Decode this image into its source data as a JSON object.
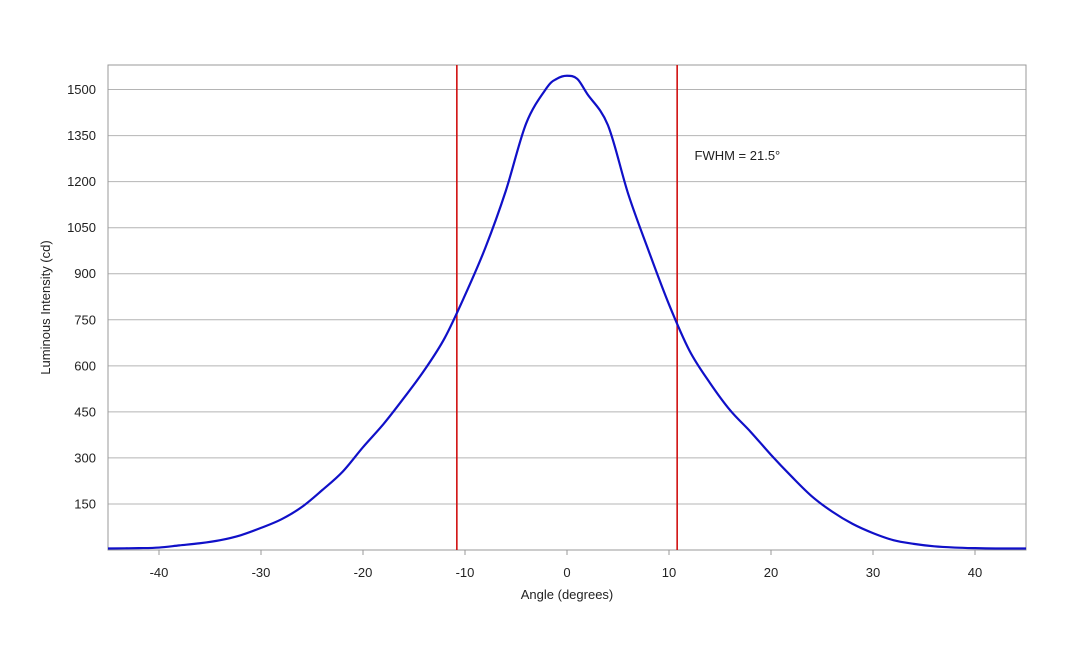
{
  "chart_data": {
    "type": "line",
    "title": "",
    "xlabel": "Angle (degrees)",
    "ylabel": "Luminous Intensity (cd)",
    "xlim": [
      -45,
      45
    ],
    "ylim": [
      0,
      1580
    ],
    "x_ticks": [
      -40,
      -30,
      -20,
      -10,
      0,
      10,
      20,
      30,
      40
    ],
    "x_tick_labels": [
      "-40",
      "-30",
      "-20",
      "-10",
      "0",
      "10",
      "20",
      "30",
      "40"
    ],
    "y_ticks": [
      150,
      300,
      450,
      600,
      750,
      900,
      1050,
      1200,
      1350,
      1500
    ],
    "y_tick_labels": [
      "150",
      "300",
      "450",
      "600",
      "750",
      "900",
      "1050",
      "1200",
      "1350",
      "1500"
    ],
    "grid": "horizontal",
    "legend": "none",
    "series": [
      {
        "color": "#1010c8",
        "x": [
          -45,
          -42,
          -40,
          -38,
          -36,
          -34,
          -32,
          -30,
          -28,
          -26,
          -24,
          -22,
          -20,
          -18,
          -16,
          -14,
          -12,
          -10,
          -8,
          -6,
          -4,
          -2,
          -1,
          0,
          1,
          2,
          4,
          6,
          8,
          10,
          12,
          14,
          16,
          18,
          20,
          22,
          24,
          26,
          28,
          30,
          32,
          34,
          36,
          38,
          40,
          42,
          45
        ],
        "y": [
          5,
          6,
          8,
          15,
          22,
          32,
          48,
          72,
          100,
          140,
          195,
          255,
          335,
          410,
          495,
          585,
          690,
          830,
          985,
          1170,
          1390,
          1505,
          1535,
          1545,
          1535,
          1485,
          1385,
          1160,
          975,
          800,
          650,
          545,
          455,
          385,
          310,
          240,
          175,
          125,
          85,
          55,
          32,
          20,
          12,
          8,
          6,
          5,
          5
        ]
      }
    ],
    "vertical_markers": [
      {
        "x": -10.8,
        "color": "#d01010"
      },
      {
        "x": 10.8,
        "color": "#d01010"
      }
    ],
    "annotations": [
      {
        "text": "FWHM = 21.5°",
        "x": 12.5,
        "y": 1270
      }
    ]
  }
}
